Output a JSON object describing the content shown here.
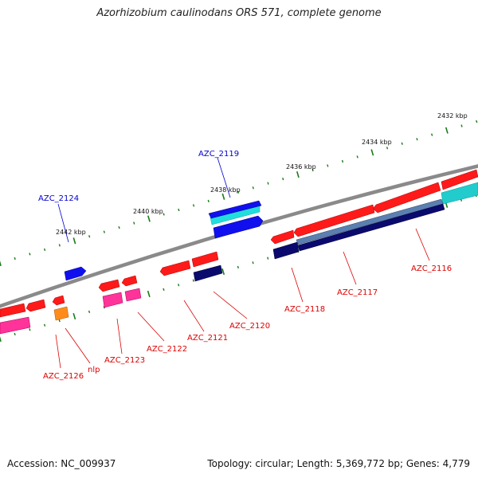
{
  "title": "Azorhizobium caulinodans ORS 571, complete genome",
  "footer": {
    "accession": "Accession: NC_009937",
    "summary": "Topology: circular; Length: 5,369,772 bp; Genes: 4,779"
  },
  "colors": {
    "backbone": "#8a8a8a",
    "tick": "#1a7a1a",
    "label_red": "#dd0000",
    "label_blue": "#0000cc",
    "forward_red": "#ff1a1a",
    "forward_blue": "#1010ee",
    "cyan": "#22cccc",
    "steel": "#5577aa",
    "navy": "#0a0a6e",
    "pink": "#ff3399",
    "orange": "#ff8c1a"
  },
  "scale_labels": [
    "2432 kbp",
    "2434 kbp",
    "2436 kbp",
    "2438 kbp",
    "2440 kbp",
    "2442 kbp"
  ],
  "gene_labels": [
    {
      "text": "AZC_2124",
      "color": "blue"
    },
    {
      "text": "AZC_2119",
      "color": "blue"
    },
    {
      "text": "AZC_2116",
      "color": "red"
    },
    {
      "text": "AZC_2117",
      "color": "red"
    },
    {
      "text": "AZC_2118",
      "color": "red"
    },
    {
      "text": "AZC_2120",
      "color": "red"
    },
    {
      "text": "AZC_2121",
      "color": "red"
    },
    {
      "text": "AZC_2122",
      "color": "red"
    },
    {
      "text": "AZC_2123",
      "color": "red"
    },
    {
      "text": "nlp",
      "color": "red"
    },
    {
      "text": "AZC_2126",
      "color": "red"
    }
  ]
}
